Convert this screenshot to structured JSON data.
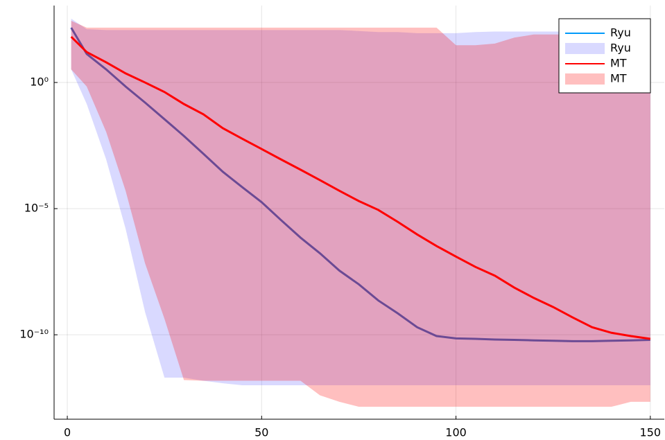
{
  "chart_data": {
    "type": "line",
    "yscale": "log",
    "grid": true,
    "legend": "top-right",
    "x": [
      1,
      5,
      10,
      15,
      20,
      25,
      30,
      35,
      40,
      45,
      50,
      55,
      60,
      65,
      70,
      75,
      80,
      85,
      90,
      95,
      100,
      105,
      110,
      115,
      120,
      125,
      130,
      135,
      140,
      145,
      150
    ],
    "xlim": [
      -3.4,
      153.6
    ],
    "xticks": [
      0,
      50,
      100,
      150
    ],
    "ylim": [
      4.5e-14,
      1122
    ],
    "yticks": [
      {
        "value": 1,
        "label": "10⁰"
      },
      {
        "value": 1e-05,
        "label": "10⁻⁵"
      },
      {
        "value": 1e-10,
        "label": "10⁻¹⁰"
      }
    ],
    "series": [
      {
        "name": "Ryu",
        "color": "#3a63c6",
        "values": [
          148,
          13.5,
          3.3,
          0.69,
          0.16,
          0.035,
          0.0076,
          0.0015,
          0.00029,
          7.1e-05,
          1.8e-05,
          3.5e-06,
          7.1e-07,
          1.7e-07,
          3.5e-08,
          1e-08,
          2.3e-09,
          7.1e-10,
          2e-10,
          8.9e-11,
          7.2e-11,
          6.9e-11,
          6.5e-11,
          6.3e-11,
          6e-11,
          5.8e-11,
          5.6e-11,
          5.6e-11,
          5.8e-11,
          6e-11,
          6.3e-11
        ]
      },
      {
        "name": "MT",
        "color": "#ff0000",
        "values": [
          65,
          16,
          6.3,
          2.3,
          1,
          0.42,
          0.14,
          0.055,
          0.0155,
          0.0059,
          0.0023,
          0.00089,
          0.00035,
          0.000135,
          5.1e-05,
          2e-05,
          8.9e-06,
          3e-06,
          9.5e-07,
          3.3e-07,
          1.26e-07,
          4.9e-08,
          2.2e-08,
          7.4e-09,
          2.9e-09,
          1.26e-09,
          4.9e-10,
          2e-10,
          1.2e-10,
          8.9e-11,
          6.9e-11
        ]
      }
    ],
    "bands": [
      {
        "name": "Ryu",
        "color": "#0000ff",
        "upper": [
          340,
          130,
          120,
          120,
          120,
          120,
          120,
          120,
          120,
          120,
          120,
          120,
          120,
          120,
          120,
          110,
          100,
          100,
          90,
          90,
          90,
          100,
          105,
          105,
          105,
          105,
          105,
          105,
          105,
          105,
          105
        ],
        "lower": [
          3.3,
          0.14,
          0.00089,
          1.6e-06,
          8e-10,
          2e-12,
          2e-12,
          1.5e-12,
          1.2e-12,
          1e-12,
          1e-12,
          1e-12,
          1e-12,
          1e-12,
          1e-12,
          1e-12,
          1e-12,
          1e-12,
          1e-12,
          1e-12,
          1e-12,
          1e-12,
          1e-12,
          1e-12,
          1e-12,
          1e-12,
          1e-12,
          1e-12,
          1e-12,
          1e-12,
          1e-12
        ]
      },
      {
        "name": "MT",
        "color": "#ff0000",
        "upper": [
          280,
          150,
          150,
          150,
          150,
          150,
          150,
          150,
          150,
          150,
          150,
          150,
          150,
          150,
          150,
          150,
          150,
          150,
          150,
          150,
          30,
          30,
          35,
          60,
          80,
          80,
          80,
          80,
          80,
          80,
          80
        ],
        "lower": [
          3.3,
          0.69,
          0.011,
          5.1e-05,
          6.8e-08,
          4.3e-10,
          1.6e-12,
          1.5e-12,
          1.5e-12,
          1.5e-12,
          1.5e-12,
          1.5e-12,
          1.5e-12,
          4e-13,
          2.2e-13,
          1.4e-13,
          1.4e-13,
          1.4e-13,
          1.4e-13,
          1.4e-13,
          1.4e-13,
          1.4e-13,
          1.4e-13,
          1.4e-13,
          1.4e-13,
          1.4e-13,
          1.4e-13,
          1.4e-13,
          1.4e-13,
          2.2e-13,
          2.2e-13
        ]
      }
    ]
  }
}
